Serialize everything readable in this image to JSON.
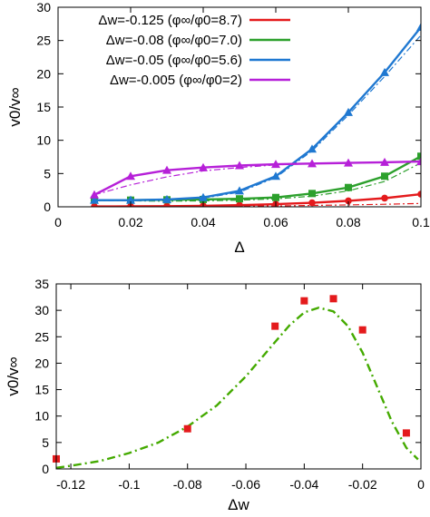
{
  "chart_data": [
    {
      "type": "line",
      "xlabel": "Δ",
      "ylabel": "v0/v∞",
      "xlim": [
        0,
        0.1
      ],
      "ylim": [
        0,
        30
      ],
      "xticks": [
        "0",
        "0.02",
        "0.04",
        "0.06",
        "0.08",
        "0.1"
      ],
      "yticks": [
        "0",
        "5",
        "10",
        "15",
        "20",
        "25",
        "30"
      ],
      "legend_position": "top-left",
      "series": [
        {
          "name": "Δw=-0.125  (φ∞/φ0=8.7)",
          "color": "#e41a1c",
          "marker": "circle",
          "x": [
            0.01,
            0.02,
            0.03,
            0.04,
            0.05,
            0.06,
            0.07,
            0.08,
            0.09,
            0.1
          ],
          "y": [
            0.05,
            0.07,
            0.1,
            0.15,
            0.25,
            0.4,
            0.6,
            0.9,
            1.3,
            1.9
          ],
          "fit_y": [
            0.02,
            0.03,
            0.05,
            0.07,
            0.1,
            0.14,
            0.2,
            0.28,
            0.38,
            0.5
          ]
        },
        {
          "name": "Δw=-0.08  (φ∞/φ0=7.0)",
          "color": "#2ca02c",
          "marker": "square",
          "x": [
            0.01,
            0.02,
            0.03,
            0.04,
            0.05,
            0.06,
            0.07,
            0.08,
            0.09,
            0.1
          ],
          "y": [
            1.0,
            1.0,
            1.05,
            1.1,
            1.2,
            1.4,
            2.0,
            2.9,
            4.6,
            7.6
          ],
          "fit_y": [
            1.0,
            0.9,
            0.85,
            0.9,
            1.0,
            1.2,
            1.6,
            2.4,
            3.8,
            6.6
          ]
        },
        {
          "name": "Δw=-0.05  (φ∞/φ0=5.6)",
          "color": "#1f78d1",
          "marker": "triangle",
          "x": [
            0.01,
            0.02,
            0.03,
            0.04,
            0.05,
            0.06,
            0.07,
            0.08,
            0.09,
            0.1
          ],
          "y": [
            1.0,
            1.0,
            1.1,
            1.4,
            2.4,
            4.6,
            8.7,
            14.2,
            20.2,
            27.0
          ],
          "fit_y": [
            0.9,
            0.9,
            1.0,
            1.3,
            2.2,
            4.4,
            8.4,
            13.8,
            19.6,
            25.8
          ]
        },
        {
          "name": "Δw=-0.005  (φ∞/φ0=2)",
          "color": "#b620d8",
          "marker": "triangle",
          "x": [
            0.01,
            0.02,
            0.03,
            0.04,
            0.05,
            0.06,
            0.07,
            0.08,
            0.09,
            0.1
          ],
          "y": [
            1.8,
            4.6,
            5.5,
            5.9,
            6.2,
            6.4,
            6.5,
            6.6,
            6.7,
            6.8
          ],
          "fit_y": [
            1.8,
            3.3,
            4.5,
            5.4,
            5.9,
            6.3,
            6.5,
            6.6,
            6.7,
            6.8
          ]
        }
      ]
    },
    {
      "type": "scatter",
      "xlabel": "Δw",
      "ylabel": "v0/v∞",
      "xlim": [
        -0.125,
        0
      ],
      "ylim": [
        0,
        35
      ],
      "xticks": [
        "-0.12",
        "-0.1",
        "-0.08",
        "-0.06",
        "-0.04",
        "-0.02",
        "0"
      ],
      "yticks": [
        "0",
        "5",
        "10",
        "15",
        "20",
        "25",
        "30",
        "35"
      ],
      "points": {
        "color": "#e41a1c",
        "marker": "square",
        "x": [
          -0.125,
          -0.08,
          -0.05,
          -0.04,
          -0.03,
          -0.02,
          -0.005
        ],
        "y": [
          1.9,
          7.6,
          27.0,
          31.8,
          32.2,
          26.3,
          6.8
        ]
      },
      "fit": {
        "color": "#44aa00",
        "style": "dash-dot",
        "x": [
          -0.125,
          -0.12,
          -0.11,
          -0.1,
          -0.09,
          -0.08,
          -0.07,
          -0.06,
          -0.05,
          -0.045,
          -0.04,
          -0.035,
          -0.03,
          -0.025,
          -0.02,
          -0.015,
          -0.01,
          -0.005,
          -0.001
        ],
        "y": [
          0.2,
          0.6,
          1.5,
          3.0,
          5.0,
          8.0,
          12.0,
          17.5,
          24.0,
          27.2,
          29.6,
          30.5,
          29.8,
          27.0,
          22.0,
          15.5,
          9.0,
          4.0,
          1.8
        ]
      }
    }
  ]
}
